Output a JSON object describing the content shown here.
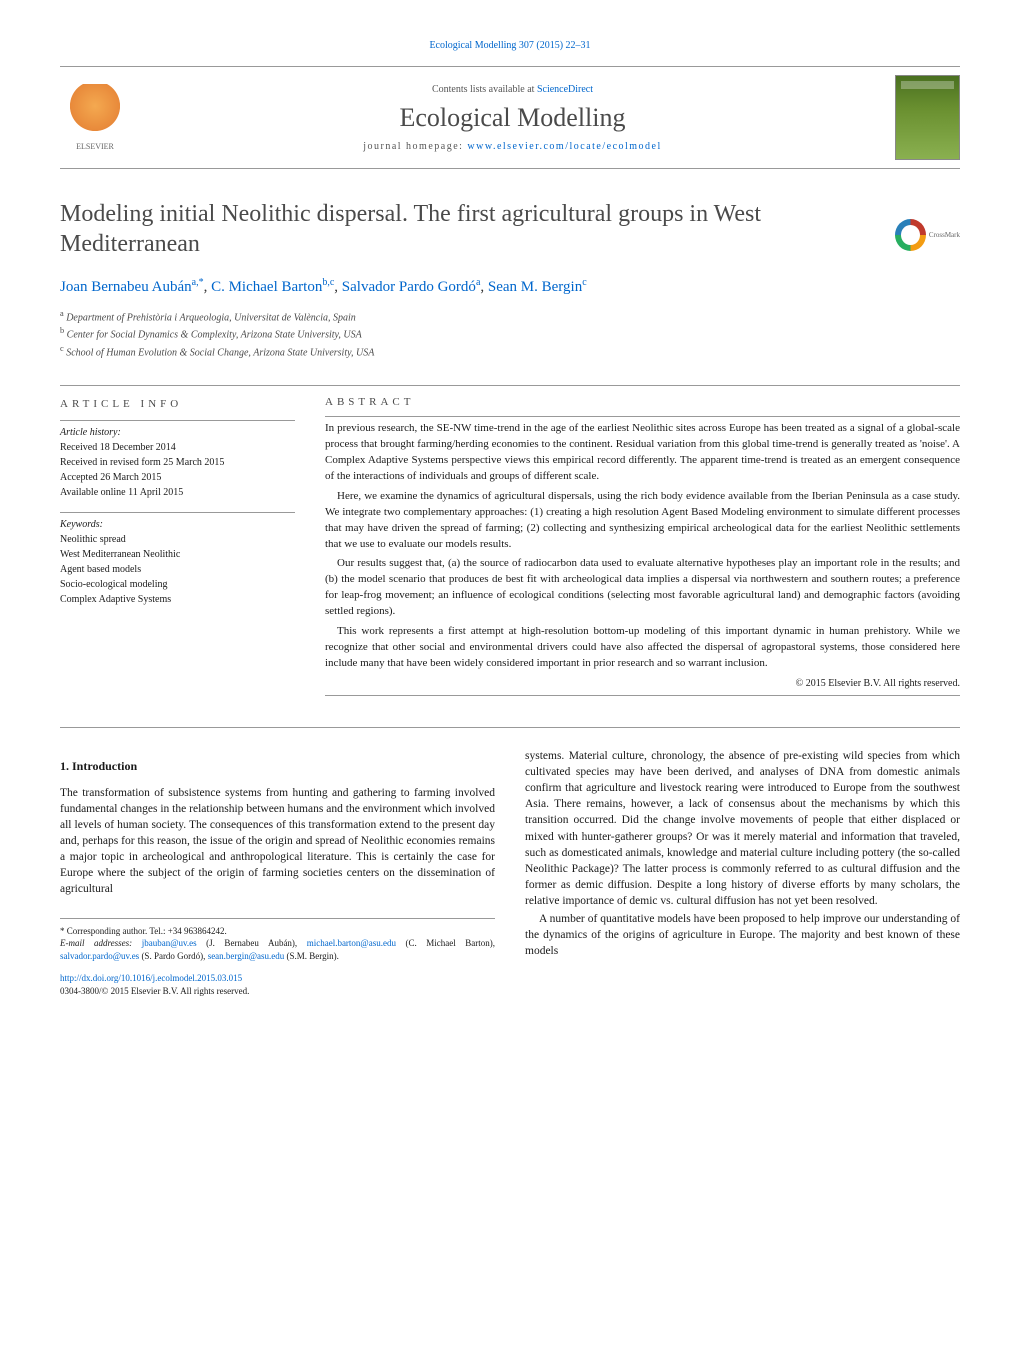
{
  "journal_ref_top": "Ecological Modelling 307 (2015) 22–31",
  "header": {
    "contents_prefix": "Contents lists available at ",
    "contents_link": "ScienceDirect",
    "journal_name": "Ecological Modelling",
    "homepage_prefix": "journal homepage: ",
    "homepage_link": "www.elsevier.com/locate/ecolmodel",
    "elsevier_label": "ELSEVIER"
  },
  "crossmark_label": "CrossMark",
  "title": "Modeling initial Neolithic dispersal. The first agricultural groups in West Mediterranean",
  "authors_html": {
    "a1_name": "Joan Bernabeu Aubán",
    "a1_affil": "a,",
    "a1_star": "*",
    "a2_name": "C. Michael Barton",
    "a2_affil": "b,c",
    "a3_name": "Salvador Pardo Gordó",
    "a3_affil": "a",
    "a4_name": "Sean M. Bergin",
    "a4_affil": "c"
  },
  "affiliations": {
    "a": "Department of Prehistòria i Arqueologia, Universitat de València, Spain",
    "b": "Center for Social Dynamics & Complexity, Arizona State University, USA",
    "c": "School of Human Evolution & Social Change, Arizona State University, USA"
  },
  "article_info": {
    "heading": "ARTICLE INFO",
    "history_label": "Article history:",
    "history": {
      "received": "Received 18 December 2014",
      "revised": "Received in revised form 25 March 2015",
      "accepted": "Accepted 26 March 2015",
      "online": "Available online 11 April 2015"
    },
    "keywords_label": "Keywords:",
    "keywords": [
      "Neolithic spread",
      "West Mediterranean Neolithic",
      "Agent based models",
      "Socio-ecological modeling",
      "Complex Adaptive Systems"
    ]
  },
  "abstract": {
    "heading": "ABSTRACT",
    "paragraphs": [
      "In previous research, the SE-NW time-trend in the age of the earliest Neolithic sites across Europe has been treated as a signal of a global-scale process that brought farming/herding economies to the continent. Residual variation from this global time-trend is generally treated as 'noise'. A Complex Adaptive Systems perspective views this empirical record differently. The apparent time-trend is treated as an emergent consequence of the interactions of individuals and groups of different scale.",
      "Here, we examine the dynamics of agricultural dispersals, using the rich body evidence available from the Iberian Peninsula as a case study. We integrate two complementary approaches: (1) creating a high resolution Agent Based Modeling environment to simulate different processes that may have driven the spread of farming; (2) collecting and synthesizing empirical archeological data for the earliest Neolithic settlements that we use to evaluate our models results.",
      "Our results suggest that, (a) the source of radiocarbon data used to evaluate alternative hypotheses play an important role in the results; and (b) the model scenario that produces de best fit with archeological data implies a dispersal via northwestern and southern routes; a preference for leap-frog movement; an influence of ecological conditions (selecting most favorable agricultural land) and demographic factors (avoiding settled regions).",
      "This work represents a first attempt at high-resolution bottom-up modeling of this important dynamic in human prehistory. While we recognize that other social and environmental drivers could have also affected the dispersal of agropastoral systems, those considered here include many that have been widely considered important in prior research and so warrant inclusion."
    ],
    "copyright": "© 2015 Elsevier B.V. All rights reserved."
  },
  "body": {
    "section_heading": "1.  Introduction",
    "col1_p1": "The transformation of subsistence systems from hunting and gathering to farming involved fundamental changes in the relationship between humans and the environment which involved all levels of human society. The consequences of this transformation extend to the present day and, perhaps for this reason, the issue of the origin and spread of Neolithic economies remains a major topic in archeological and anthropological literature. This is certainly the case for Europe where the subject of the origin of farming societies centers on the dissemination of agricultural",
    "col2_p1": "systems. Material culture, chronology, the absence of pre-existing wild species from which cultivated species may have been derived, and analyses of DNA from domestic animals confirm that agriculture and livestock rearing were introduced to Europe from the southwest Asia. There remains, however, a lack of consensus about the mechanisms by which this transition occurred. Did the change involve movements of people that either displaced or mixed with hunter-gatherer groups? Or was it merely material and information that traveled, such as domesticated animals, knowledge and material culture including pottery (the so-called Neolithic Package)? The latter process is commonly referred to as cultural diffusion and the former as demic diffusion. Despite a long history of diverse efforts by many scholars, the relative importance of demic vs. cultural diffusion has not yet been resolved.",
    "col2_p2": "A number of quantitative models have been proposed to help improve our understanding of the dynamics of the origins of agriculture in Europe. The majority and best known of these models"
  },
  "footnotes": {
    "corresponding": "Corresponding author. Tel.: +34 963864242.",
    "email_label": "E-mail addresses: ",
    "emails": [
      {
        "addr": "jbauban@uv.es",
        "name": " (J. Bernabeu Aubán), "
      },
      {
        "addr": "michael.barton@asu.edu",
        "name": " (C. Michael Barton), "
      },
      {
        "addr": "salvador.pardo@uv.es",
        "name": " (S. Pardo Gordó), "
      },
      {
        "addr": "sean.bergin@asu.edu",
        "name": " (S.M. Bergin)."
      }
    ],
    "doi_link": "http://dx.doi.org/10.1016/j.ecolmodel.2015.03.015",
    "doi_rest": "0304-3800/© 2015 Elsevier B.V. All rights reserved."
  },
  "colors": {
    "link": "#0066cc",
    "text": "#1a1a1a",
    "muted": "#4a4a4a",
    "border": "#999999"
  },
  "fontsizes": {
    "title": 24,
    "journal": 26,
    "authors": 15,
    "body": 11.5,
    "abstract": 11,
    "info": 10,
    "footnote": 9
  }
}
